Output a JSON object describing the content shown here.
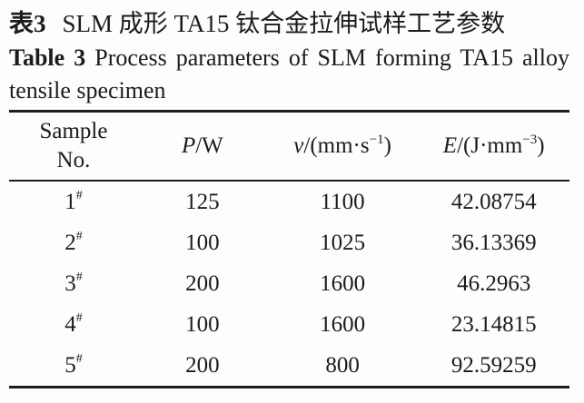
{
  "caption": {
    "zh_label": "表3",
    "zh_text": "SLM 成形 TA15 钛合金拉伸试样工艺参数",
    "en_label": "Table 3",
    "en_line1": "Process parameters of SLM forming TA15 alloy",
    "en_line2": "tensile specimen"
  },
  "table": {
    "headers": {
      "sample_line1": "Sample",
      "sample_line2": "No.",
      "p_var": "P",
      "p_rest": "/W",
      "v_var": "v",
      "v_pre": "/(mm·s",
      "v_sup": "−1",
      "v_post": ")",
      "e_var": "E",
      "e_pre": "/(J·mm",
      "e_sup": "−3",
      "e_post": ")"
    },
    "sample_mark": "#",
    "rows": [
      {
        "sample": "1",
        "p": "125",
        "v": "1100",
        "e": "42.08754"
      },
      {
        "sample": "2",
        "p": "100",
        "v": "1025",
        "e": "36.13369"
      },
      {
        "sample": "3",
        "p": "200",
        "v": "1600",
        "e": "46.2963"
      },
      {
        "sample": "4",
        "p": "100",
        "v": "1600",
        "e": "23.14815"
      },
      {
        "sample": "5",
        "p": "200",
        "v": "800",
        "e": "92.59259"
      }
    ]
  },
  "chart_data": {
    "type": "table",
    "title_zh": "表3 SLM成形TA15钛合金拉伸试样工艺参数",
    "title_en": "Table 3 Process parameters of SLM forming TA15 alloy tensile specimen",
    "columns": [
      "Sample No.",
      "P/W",
      "v/(mm·s−1)",
      "E/(J·mm−3)"
    ],
    "rows": [
      [
        "1#",
        125,
        1100,
        42.08754
      ],
      [
        "2#",
        100,
        1025,
        36.13369
      ],
      [
        "3#",
        200,
        1600,
        46.2963
      ],
      [
        "4#",
        100,
        1600,
        23.14815
      ],
      [
        "5#",
        200,
        800,
        92.59259
      ]
    ]
  }
}
